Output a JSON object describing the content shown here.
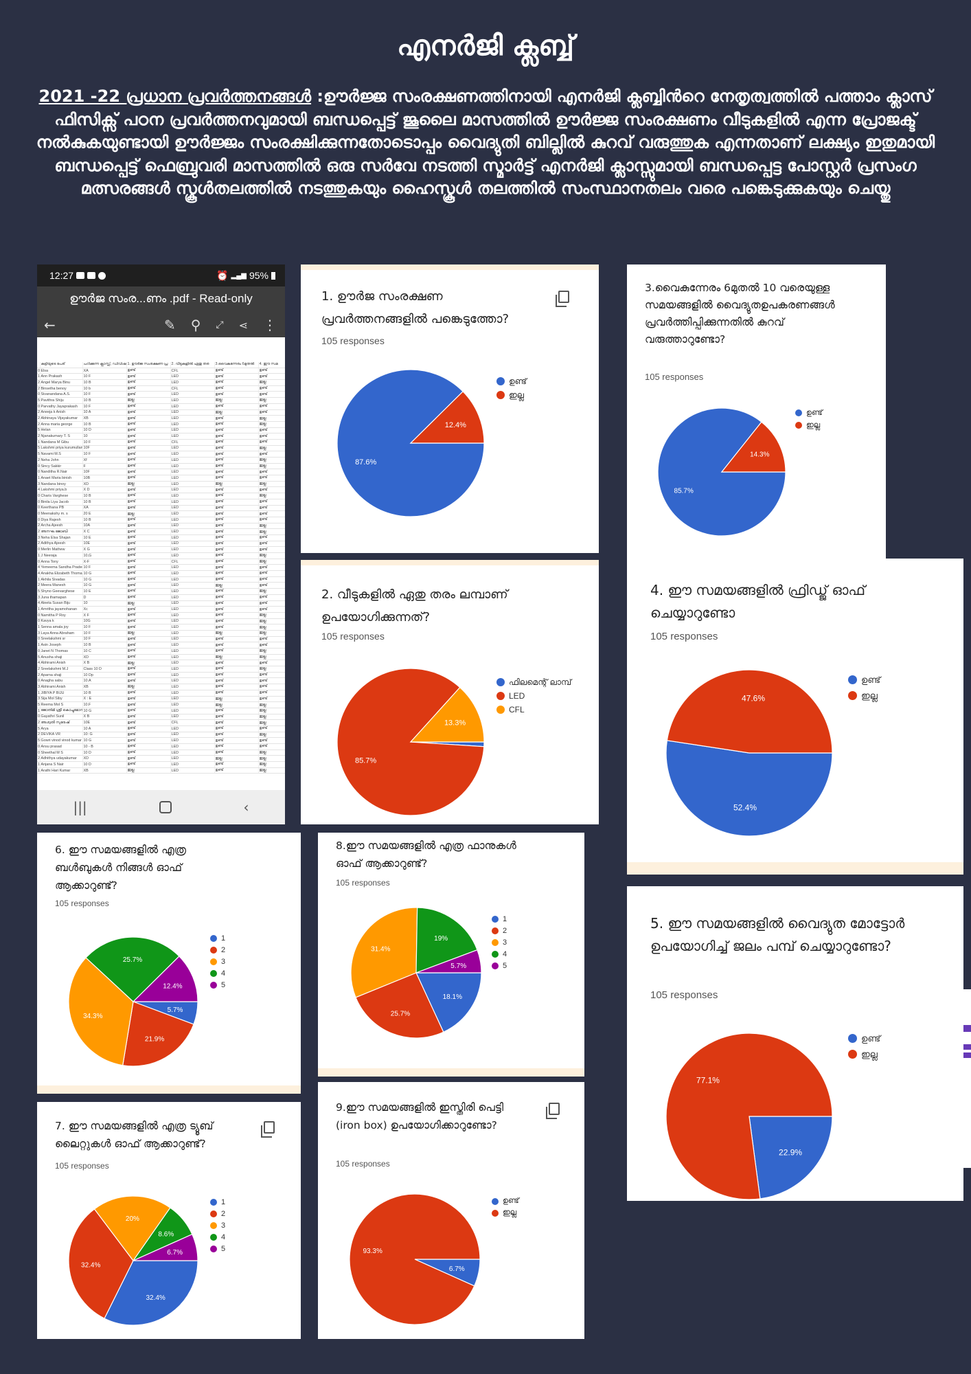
{
  "page": {
    "title": "എനർജി ക്ലബ്ബ്",
    "intro_heading": "2021 -22 പ്രധാന പ്രവർത്തനങ്ങൾ",
    "intro_text": " :ഊർജ്ജ സംരക്ഷണത്തിനായി എനർജി ക്ലബ്ബിൻറെ നേതൃത്വത്തിൽ പത്താം ക്ലാസ് ഫിസിക്സ് പഠന പ്രവർത്തനവുമായി ബന്ധപ്പെട്ട് ജൂലൈ മാസത്തിൽ ഊർജ്ജ സംരക്ഷണം വീടുകളിൽ എന്ന പ്രോജക്ട് നൽകുകയുണ്ടായി ഊർജ്ജം സംരക്ഷിക്കുന്നതോടൊപ്പം വൈദ്യുതി ബില്ലിൽ കുറവ് വരുത്തുക എന്നതാണ് ലക്ഷ്യം ഇതുമായി ബന്ധപ്പെട്ട് ഫെബ്രുവരി മാസത്തിൽ ഒരു സർവേ നടത്തി സ്മാർട്ട് എനർജി ക്ലാസ്സുമായി ബന്ധപ്പെട്ട പോസ്റ്റർ പ്രസംഗ മത്സരങ്ങൾ സ്കൂൾതലത്തിൽ നടത്തുകയും ഹൈസ്കൂൾ തലത്തിൽ സംസ്ഥാനതലം വരെ പങ്കെടുക്കുകയും ചെയ്തു"
  },
  "phone": {
    "time": "12:27",
    "battery": "95%",
    "doc_title": "ഊർജ സംര...ണം .pdf - Read-only",
    "header_row": [
      "കുട്ടിയുടെ പേര്",
      "പഠിക്കുന്ന ക്ലാസ്സ്, ഡിവിഷ",
      "1. ഊർജ സംരക്ഷണ പ്ര",
      "2. വീടുകളിൽ ഏതു തര",
      "3.വൈകുന്നേരം 6മുതൽ",
      "4. ഈ സമ"
    ],
    "rows": [
      [
        "00",
        "Elsa",
        "XA",
        "ഉണ്ട്",
        "CFL",
        "ഉണ്ട്",
        "ഉണ്ട്"
      ],
      [
        "12",
        "Ann Prakash",
        "10 F",
        "ഉണ്ട്",
        "LED",
        "ഉണ്ട്",
        "ഉണ്ട്"
      ],
      [
        "21",
        "Angel Marya Binu",
        "10 B",
        "ഉണ്ട്",
        "LED",
        "ഉണ്ട്",
        "ഇല്ല"
      ],
      [
        "22",
        "Binsetha benoy",
        "10 b",
        "ഉണ്ട്",
        "CFL",
        "ഉണ്ട്",
        "ഉണ്ട്"
      ],
      [
        "04",
        "Sivanandana A.S.",
        "10 F",
        "ഉണ്ട്",
        "LED",
        "ഉണ്ട്",
        "ഉണ്ട്"
      ],
      [
        "59",
        "Pavithra Shiju",
        "10 B",
        "ഇല്ല",
        "LED",
        "ഇല്ല",
        "ഇല്ല"
      ],
      [
        "04",
        "Parvathy Jayaprakash",
        "10 F",
        "ഉണ്ട്",
        "LED",
        "ഉണ്ട്",
        "ഉണ്ട്"
      ],
      [
        "23",
        "Aneeja k Anish",
        "10 A",
        "ഉണ്ട്",
        "LED",
        "ഇല്ല",
        "ഉണ്ട്"
      ],
      [
        "25",
        "Abhinaya Vijayakumar",
        "XB",
        "ഉണ്ട്",
        "LED",
        "ഉണ്ട്",
        "ഇല്ല"
      ],
      [
        "21",
        "Anna maria george",
        "10 B",
        "ഉണ്ട്",
        "LED",
        "ഉണ്ട്",
        "ഇല്ല"
      ],
      [
        "52",
        "Helan",
        "10 D",
        "ഉണ്ട്",
        "LED",
        "ഉണ്ട്",
        "ഉണ്ട്"
      ],
      [
        "25",
        "Njanakumary T. S",
        "10",
        "ഉണ്ട്",
        "LED",
        "ഉണ്ട്",
        "ഉണ്ട്"
      ],
      [
        "17",
        "Nandana M Gibu",
        "10 F",
        "ഉണ്ട്",
        "CFL",
        "ഉണ്ട്",
        "ഉണ്ട്"
      ],
      [
        "59",
        "Lakshmi priya kurumullan",
        "10F",
        "ഉണ്ട്",
        "LED",
        "ഉണ്ട്",
        "ഇല്ല"
      ],
      [
        "55",
        "Navami M.S",
        "10 F",
        "ഉണ്ട്",
        "LED",
        "ഉണ്ട്",
        "ഉണ്ട്"
      ],
      [
        "28",
        "Neha John",
        "Xf",
        "ഉണ്ട്",
        "LED",
        "ഉണ്ട്",
        "ഇല്ല"
      ],
      [
        "05",
        "Sincy Sakkir",
        "F",
        "ഉണ്ട്",
        "LED",
        "ഉണ്ട്",
        "ഇല്ല"
      ],
      [
        "09",
        "Nanditha R.Nair",
        "10F",
        "ഉണ്ട്",
        "LED",
        "ഉണ്ട്",
        "ഉണ്ട്"
      ],
      [
        "10",
        "Anaet Maria binish",
        "10B",
        "ഉണ്ട്",
        "LED",
        "ഉണ്ട്",
        "ഉണ്ട്"
      ],
      [
        "38",
        "Nandana binoy",
        "XD",
        "ഇല്ല",
        "LED",
        "ഇല്ല",
        "ഇല്ല"
      ],
      [
        "40",
        "Lakshmi priya.b",
        "X D",
        "ഉണ്ട്",
        "LED",
        "ഉണ്ട്",
        "ഉണ്ട്"
      ],
      [
        "09",
        "Charis Varghese",
        "10 B",
        "ഉണ്ട്",
        "LED",
        "ഉണ്ട്",
        "ഇല്ല"
      ],
      [
        "05",
        "Binila Liya Jacob",
        "10 B",
        "ഉണ്ട്",
        "LED",
        "ഉണ്ട്",
        "ഉണ്ട്"
      ],
      [
        "09",
        "Keerthana PB",
        "XA",
        "ഉണ്ട്",
        "LED",
        "ഉണ്ട്",
        "ഉണ്ട്"
      ],
      [
        "07",
        "Meenakshy m. s",
        "20 E",
        "ഇല്ല",
        "LED",
        "ഉണ്ട്",
        "ഉണ്ട്"
      ],
      [
        "03",
        "Diya Rajesh",
        "10 B",
        "ഉണ്ട്",
        "LED",
        "ഉണ്ട്",
        "ഉണ്ട്"
      ],
      [
        "23",
        "Archa Ajeesh",
        "10A",
        "ഉണ്ട്",
        "LED",
        "ഉണ്ട്",
        "ഇല്ല"
      ],
      [
        "27",
        "അനഘ ജോബി",
        "X C",
        "ഉണ്ട്",
        "LED",
        "ഉണ്ട്",
        "ഇല്ല"
      ],
      [
        "32",
        "Neha Elsa Shajan",
        "10 E",
        "ഉണ്ട്",
        "LED",
        "ഉണ്ട്",
        "ഉണ്ട്"
      ],
      [
        "25",
        "Adithya Ajeesh",
        "10E",
        "ഉണ്ട്",
        "LED",
        "ഉണ്ട്",
        "ഉണ്ട്"
      ],
      [
        "08",
        "Merlin Mathew",
        "X G",
        "ഉണ്ട്",
        "LED",
        "ഉണ്ട്",
        "ഉണ്ട്"
      ],
      [
        "18",
        "J Neeraja",
        "10,G",
        "ഉണ്ട്",
        "LED",
        "ഉണ്ട്",
        "ഇല്ല"
      ],
      [
        "09",
        "Anna Tony",
        "X-F",
        "ഉണ്ട്",
        "CFL",
        "ഉണ്ട്",
        "ഇല്ല"
      ],
      [
        "43",
        "Yemeema Sandha Pradee",
        "10 F",
        "ഉണ്ട്",
        "LED",
        "ഉണ്ട്",
        "ഉണ്ട്"
      ],
      [
        "48",
        "Anakha Elizabeth Thomas",
        "10 G",
        "ഉണ്ട്",
        "LED",
        "ഉണ്ട്",
        "ഉണ്ട്"
      ],
      [
        "14",
        "Akhila Sivadas",
        "10 G",
        "ഉണ്ട്",
        "LED",
        "ഉണ്ട്",
        "ഉണ്ട്"
      ],
      [
        "24",
        "Meera Manesh",
        "10 G",
        "ഉണ്ട്",
        "LED",
        "ഇല്ല",
        "ഉണ്ട്"
      ],
      [
        "56",
        "Shyno Geevarghese",
        "10 E",
        "ഉണ്ട്",
        "LED",
        "ഉണ്ട്",
        "ഇല്ല"
      ],
      [
        "30",
        "Juna thamapan",
        "D",
        "ഉണ്ട്",
        "LED",
        "ഉണ്ട്",
        "ഉണ്ട്"
      ],
      [
        "46",
        "Aleeta Susan Biju",
        "10",
        "ഇല്ല",
        "LED",
        "ഉണ്ട്",
        "ഉണ്ട്"
      ],
      [
        "19",
        "Amritha jayamohanan",
        "Xc",
        "ഉണ്ട്",
        "LED",
        "ഉണ്ട്",
        "ഉണ്ട്"
      ],
      [
        "07",
        "Namitha P Roy",
        "X F",
        "ഉണ്ട്",
        "LED",
        "ഉണ്ട്",
        "ഇല്ല"
      ],
      [
        "00",
        "Kavya k",
        "10G",
        "ഉണ്ട്",
        "LED",
        "ഉണ്ട്",
        "ഇല്ല"
      ],
      [
        "13",
        "Senna amala joy",
        "10 F",
        "ഉണ്ട്",
        "LED",
        "ഉണ്ട്",
        "ഇല്ല"
      ],
      [
        "34",
        "Laya Anna Abraham",
        "10 F",
        "ഇല്ല",
        "LED",
        "ഇല്ല",
        "ഇല്ല"
      ],
      [
        "09",
        "Sreelakshmi sr",
        "10 F",
        "ഉണ്ട്",
        "LED",
        "ഉണ്ട്",
        "ഉണ്ട്"
      ],
      [
        "18",
        "Asin Joseph",
        "10 B",
        "ഉണ്ട്",
        "LED",
        "ഉണ്ട്",
        "ഉണ്ട്"
      ],
      [
        "07",
        "Janet N Thomas",
        "10 C",
        "ഉണ്ട്",
        "LED",
        "ഉണ്ട്",
        "ഇല്ല"
      ],
      [
        "50",
        "Anusha shaji",
        "XD",
        "ഉണ്ട്",
        "LED",
        "ഇല്ല",
        "ഇല്ല"
      ],
      [
        "40",
        "Abhirami Anish",
        "X B",
        "ഇല്ല",
        "LED",
        "ഉണ്ട്",
        "ഉണ്ട്"
      ],
      [
        "23",
        "Sreelakshmi M.J",
        "Class 10 D",
        "ഉണ്ട്",
        "LED",
        "ഉണ്ട്",
        "ഇല്ല"
      ],
      [
        "25",
        "Aparna shaji",
        "10 Dp",
        "ഉണ്ട്",
        "LED",
        "ഉണ്ട്",
        "ഉണ്ട്"
      ],
      [
        "07",
        "Anagha sabu",
        "10.A",
        "ഉണ്ട്",
        "LED",
        "ഉണ്ട്",
        "ഉണ്ട്"
      ],
      [
        "36",
        "Abhirami Anish",
        "XB",
        "ഇല്ല",
        "LED",
        "ഉണ്ട്",
        "ഉണ്ട്"
      ],
      [
        "12",
        "JIBIYA P BIJU",
        "10 B",
        "ഉണ്ട്",
        "LED",
        "ഉണ്ട്",
        "ഉണ്ട്"
      ],
      [
        "38",
        "Sija Mol Siby",
        "X : E",
        "ഉണ്ട്",
        "LED",
        "ഇല്ല",
        "ഉണ്ട്"
      ],
      [
        "53",
        "Reema Mol S",
        "10.F",
        "ഉണ്ട്",
        "LED",
        "ഇല്ല",
        "ഇല്ല"
      ],
      [
        "10",
        "ജോതിമി ശ്രീ കൊച്ചുമോൻ",
        "10 G",
        "ഉണ്ട്",
        "LED",
        "ഉണ്ട്",
        "ഇല്ല"
      ],
      [
        "09",
        "Gayathri Sunil",
        "X B",
        "ഉണ്ട്",
        "LED",
        "ഉണ്ട്",
        "ഇല്ല"
      ],
      [
        "23",
        "അശ്വതി സുരേഷ്",
        "10E",
        "ഉണ്ട്",
        "CFL",
        "ഉണ്ട്",
        "ഇല്ല"
      ],
      [
        "51",
        "Arya",
        "10 A",
        "ഉണ്ട്",
        "LED",
        "ഉണ്ട്",
        "ഉണ്ട്"
      ],
      [
        "21",
        "DEVIKA VR",
        "10: G",
        "ഉണ്ട്",
        "LED",
        "ഉണ്ട്",
        "ഇല്ല"
      ],
      [
        "57",
        "Gowri vinod vinod kumar",
        "10 G",
        "ഉണ്ട്",
        "LED",
        "ഉണ്ട്",
        "ഉണ്ട്"
      ],
      [
        "04",
        "Ansu prasad",
        "10 - B",
        "ഉണ്ട്",
        "LED",
        "ഉണ്ട്",
        "ഉണ്ട്"
      ],
      [
        "09",
        "Sheethal M S",
        "10 D",
        "ഉണ്ട്",
        "LED",
        "ഉണ്ട്",
        "ഇല്ല"
      ],
      [
        "21",
        "Adhithya udayakumar",
        "XD",
        "ഉണ്ട്",
        "LED",
        "ഇല്ല",
        "ഇല്ല"
      ],
      [
        "16",
        "Anjana S Nair",
        "10 D",
        "ഉണ്ട്",
        "LED",
        "ഉണ്ട്",
        "ഇല്ല"
      ],
      [
        "17",
        "Arathi Hari Kumar",
        "XB",
        "ഇല്ല",
        "LED",
        "ഉണ്ട്",
        "ഇല്ല"
      ]
    ]
  },
  "responses_label": "105 responses",
  "colors": {
    "blue": "#3366cc",
    "red": "#dc3912",
    "orange": "#ff9900",
    "green": "#109618",
    "purple": "#990099"
  },
  "chart_data": [
    {
      "type": "pie",
      "title": "1. ഊർജ സംരക്ഷണ പ്രവർത്തനങ്ങളിൽ പങ്കെടുത്തോ?",
      "responses": "105 responses",
      "categories": [
        "ഉണ്ട്",
        "ഇല്ല"
      ],
      "values": [
        87.6,
        12.4
      ],
      "labels": [
        "87.6%",
        "12.4%"
      ],
      "colors": [
        "#3366cc",
        "#dc3912"
      ],
      "legend": "right"
    },
    {
      "type": "pie",
      "title": "2. വീടുകളിൽ ഏതു തരം ലമ്പാണ് ഉപയോഗിക്കുന്നത്?",
      "responses": "105 responses",
      "categories": [
        "ഫിലമെന്റ് ലാമ്പ്",
        "LED",
        "CFL"
      ],
      "values": [
        1.0,
        85.7,
        13.3
      ],
      "labels": [
        "",
        "85.7%",
        "13.3%"
      ],
      "colors": [
        "#3366cc",
        "#dc3912",
        "#ff9900"
      ],
      "legend": "right"
    },
    {
      "type": "pie",
      "title": "3.വൈകുന്നേരം 6മുതൽ 10 വരെയുള്ള സമയങ്ങളിൽ വൈദ്യുതഉപകരണങ്ങൾ പ്രവർത്തിപ്പിക്കുന്നതിൽ കുറവ് വരുത്താറുണ്ടോ?",
      "responses": "105 responses",
      "categories": [
        "ഉണ്ട്",
        "ഇല്ല"
      ],
      "values": [
        85.7,
        14.3
      ],
      "labels": [
        "85.7%",
        "14.3%"
      ],
      "colors": [
        "#3366cc",
        "#dc3912"
      ],
      "legend": "right"
    },
    {
      "type": "pie",
      "title": "4. ഈ സമയങ്ങളിൽ ഫ്രിഡ്ജ് ഓഫ് ചെയ്യാറുണ്ടോ",
      "responses": "105 responses",
      "categories": [
        "ഉണ്ട്",
        "ഇല്ല"
      ],
      "values": [
        52.4,
        47.6
      ],
      "labels": [
        "52.4%",
        "47.6%"
      ],
      "colors": [
        "#3366cc",
        "#dc3912"
      ],
      "legend": "right"
    },
    {
      "type": "pie",
      "title": "5. ഈ സമയങ്ങളിൽ വൈദ്യുത മോട്ടോർ ഉപയോഗിച്ച് ജലം പമ്പ് ചെയ്യാറുണ്ടോ?",
      "responses": "105 responses",
      "categories": [
        "ഉണ്ട്",
        "ഇല്ല"
      ],
      "values": [
        22.9,
        77.1
      ],
      "labels": [
        "22.9%",
        "77.1%"
      ],
      "colors": [
        "#3366cc",
        "#dc3912"
      ],
      "legend": "right"
    },
    {
      "type": "pie",
      "title": "6. ഈ സമയങ്ങളിൽ എത്ര ബൾബുകൾ നിങ്ങൾ ഓഫ് ആക്കാറുണ്ട്?",
      "responses": "105 responses",
      "categories": [
        "1",
        "2",
        "3",
        "4",
        "5"
      ],
      "values": [
        5.7,
        21.9,
        34.3,
        25.7,
        12.4
      ],
      "labels": [
        "5.7%",
        "21.9%",
        "34.3%",
        "25.7%",
        "12.4%"
      ],
      "colors": [
        "#3366cc",
        "#dc3912",
        "#ff9900",
        "#109618",
        "#990099"
      ],
      "legend": "right"
    },
    {
      "type": "pie",
      "title": "7. ഈ സമയങ്ങളിൽ എത്ര ട്യൂബ് ലൈറ്റുകൾ ഓഫ് ആക്കാറുണ്ട്?",
      "responses": "105 responses",
      "categories": [
        "1",
        "2",
        "3",
        "4",
        "5"
      ],
      "values": [
        32.4,
        32.4,
        20.0,
        8.6,
        6.7
      ],
      "labels": [
        "32.4%",
        "32.4%",
        "20%",
        "8.6%",
        "6.7%"
      ],
      "colors": [
        "#3366cc",
        "#dc3912",
        "#ff9900",
        "#109618",
        "#990099"
      ],
      "legend": "right"
    },
    {
      "type": "pie",
      "title": "8.ഈ സമയങ്ങളിൽ എത്ര ഫാനുകൾ ഓഫ് ആക്കാറുണ്ട്?",
      "responses": "105 responses",
      "categories": [
        "1",
        "2",
        "3",
        "4",
        "5"
      ],
      "values": [
        18.1,
        25.7,
        31.4,
        19.0,
        5.7
      ],
      "labels": [
        "18.1%",
        "25.7%",
        "31.4%",
        "19%",
        "5.7%"
      ],
      "colors": [
        "#3366cc",
        "#dc3912",
        "#ff9900",
        "#109618",
        "#990099"
      ],
      "legend": "right"
    },
    {
      "type": "pie",
      "title": "9.ഈ സമയങ്ങളിൽ ഇസ്തിരി പെട്ടി (iron box) ഉപയോഗിക്കാറുണ്ടോ?",
      "responses": "105 responses",
      "categories": [
        "ഉണ്ട്",
        "ഇല്ല"
      ],
      "values": [
        6.7,
        93.3
      ],
      "labels": [
        "6.7%",
        "93.3%"
      ],
      "colors": [
        "#3366cc",
        "#dc3912"
      ],
      "legend": "right"
    }
  ]
}
